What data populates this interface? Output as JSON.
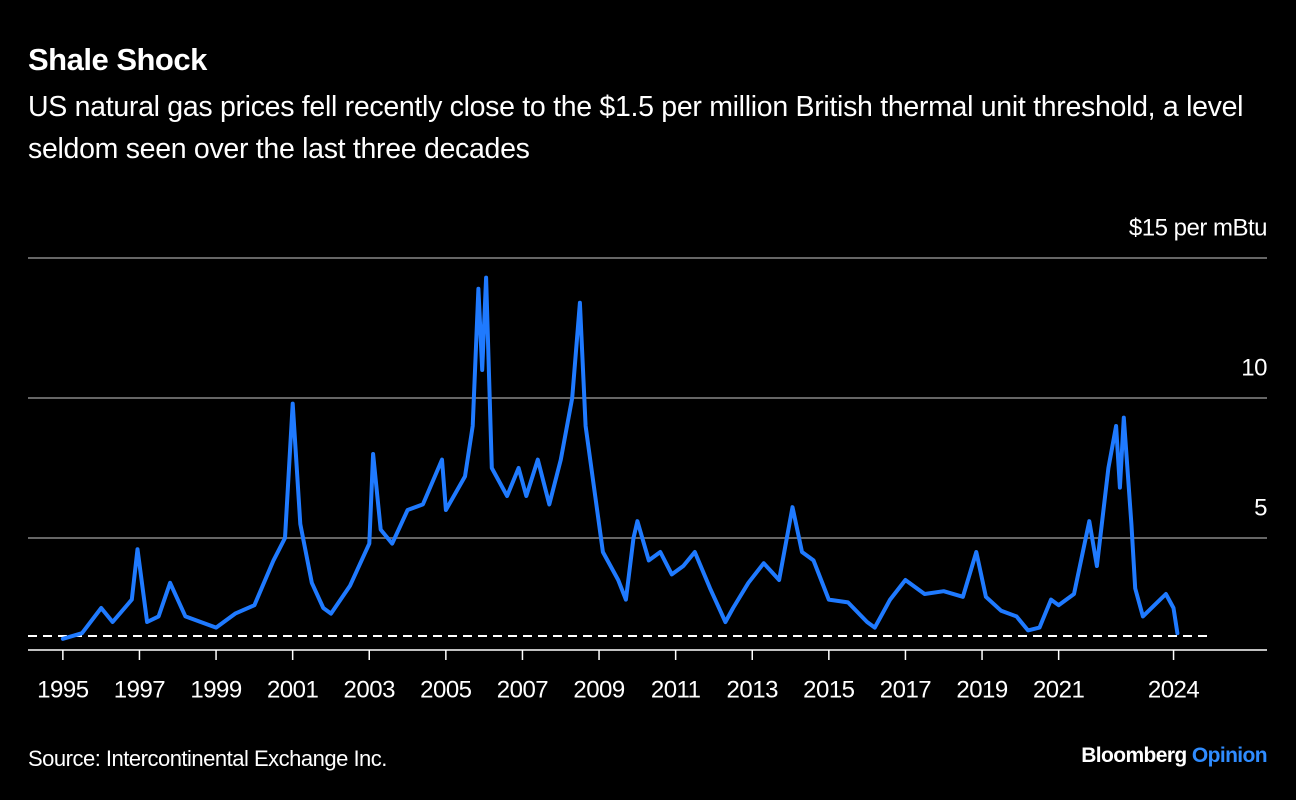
{
  "chart_data": {
    "type": "line",
    "title": "Shale Shock",
    "subtitle": "US natural gas prices fell recently close to the $1.5 per million British thermal unit threshold, a level seldom seen over the last three decades",
    "source": "Source: Intercontinental Exchange Inc.",
    "brand": {
      "name": "Bloomberg",
      "section": "Opinion"
    },
    "x": [
      1995.0,
      1995.5,
      1996.0,
      1996.3,
      1996.8,
      1996.95,
      1997.2,
      1997.5,
      1997.8,
      1998.2,
      1998.6,
      1999.0,
      1999.5,
      2000.0,
      2000.5,
      2000.8,
      2001.0,
      2001.2,
      2001.5,
      2001.8,
      2002.0,
      2002.5,
      2003.0,
      2003.1,
      2003.3,
      2003.6,
      2004.0,
      2004.4,
      2004.9,
      2005.0,
      2005.5,
      2005.7,
      2005.85,
      2005.95,
      2006.05,
      2006.2,
      2006.6,
      2006.9,
      2007.1,
      2007.4,
      2007.7,
      2008.0,
      2008.3,
      2008.5,
      2008.65,
      2008.9,
      2009.1,
      2009.5,
      2009.7,
      2009.9,
      2010.0,
      2010.3,
      2010.6,
      2010.9,
      2011.2,
      2011.5,
      2011.9,
      2012.3,
      2012.5,
      2012.9,
      2013.3,
      2013.7,
      2014.05,
      2014.3,
      2014.6,
      2015.0,
      2015.5,
      2016.0,
      2016.2,
      2016.6,
      2017.0,
      2017.5,
      2018.0,
      2018.5,
      2018.85,
      2019.1,
      2019.5,
      2019.9,
      2020.2,
      2020.5,
      2020.8,
      2021.0,
      2021.4,
      2021.8,
      2022.0,
      2022.3,
      2022.5,
      2022.6,
      2022.7,
      2022.9,
      2023.0,
      2023.2,
      2023.5,
      2023.8,
      2024.0,
      2024.1
    ],
    "series": [
      {
        "name": "US natural gas price",
        "color": "#1f7aff",
        "values": [
          1.4,
          1.6,
          2.5,
          2.0,
          2.8,
          4.6,
          2.0,
          2.2,
          3.4,
          2.2,
          2.0,
          1.8,
          2.3,
          2.6,
          4.2,
          5.0,
          9.8,
          5.5,
          3.4,
          2.5,
          2.3,
          3.3,
          4.8,
          8.0,
          5.3,
          4.8,
          6.0,
          6.2,
          7.8,
          6.0,
          7.2,
          9.0,
          13.9,
          11.0,
          14.3,
          7.5,
          6.5,
          7.5,
          6.5,
          7.8,
          6.2,
          7.8,
          10.0,
          13.4,
          9.0,
          6.5,
          4.5,
          3.5,
          2.8,
          5.0,
          5.6,
          4.2,
          4.5,
          3.7,
          4.0,
          4.5,
          3.2,
          2.0,
          2.5,
          3.4,
          4.1,
          3.5,
          6.1,
          4.5,
          4.2,
          2.8,
          2.7,
          2.0,
          1.8,
          2.8,
          3.5,
          3.0,
          3.1,
          2.9,
          4.5,
          2.9,
          2.4,
          2.2,
          1.7,
          1.8,
          2.8,
          2.6,
          3.0,
          5.6,
          4.0,
          7.5,
          9.0,
          6.8,
          9.3,
          5.5,
          3.2,
          2.2,
          2.6,
          3.0,
          2.5,
          1.6
        ]
      }
    ],
    "reference_line": 1.5,
    "xlim": [
      1994.09,
      2026.44
    ],
    "xticks": [
      1995,
      1997,
      1999,
      2001,
      2003,
      2005,
      2007,
      2009,
      2011,
      2013,
      2015,
      2017,
      2019,
      2021,
      2024
    ],
    "ylim": [
      1,
      15
    ],
    "yticks": [
      5,
      10,
      {
        "value": 15,
        "label": "$15 per mBtu"
      }
    ],
    "grid": true
  }
}
